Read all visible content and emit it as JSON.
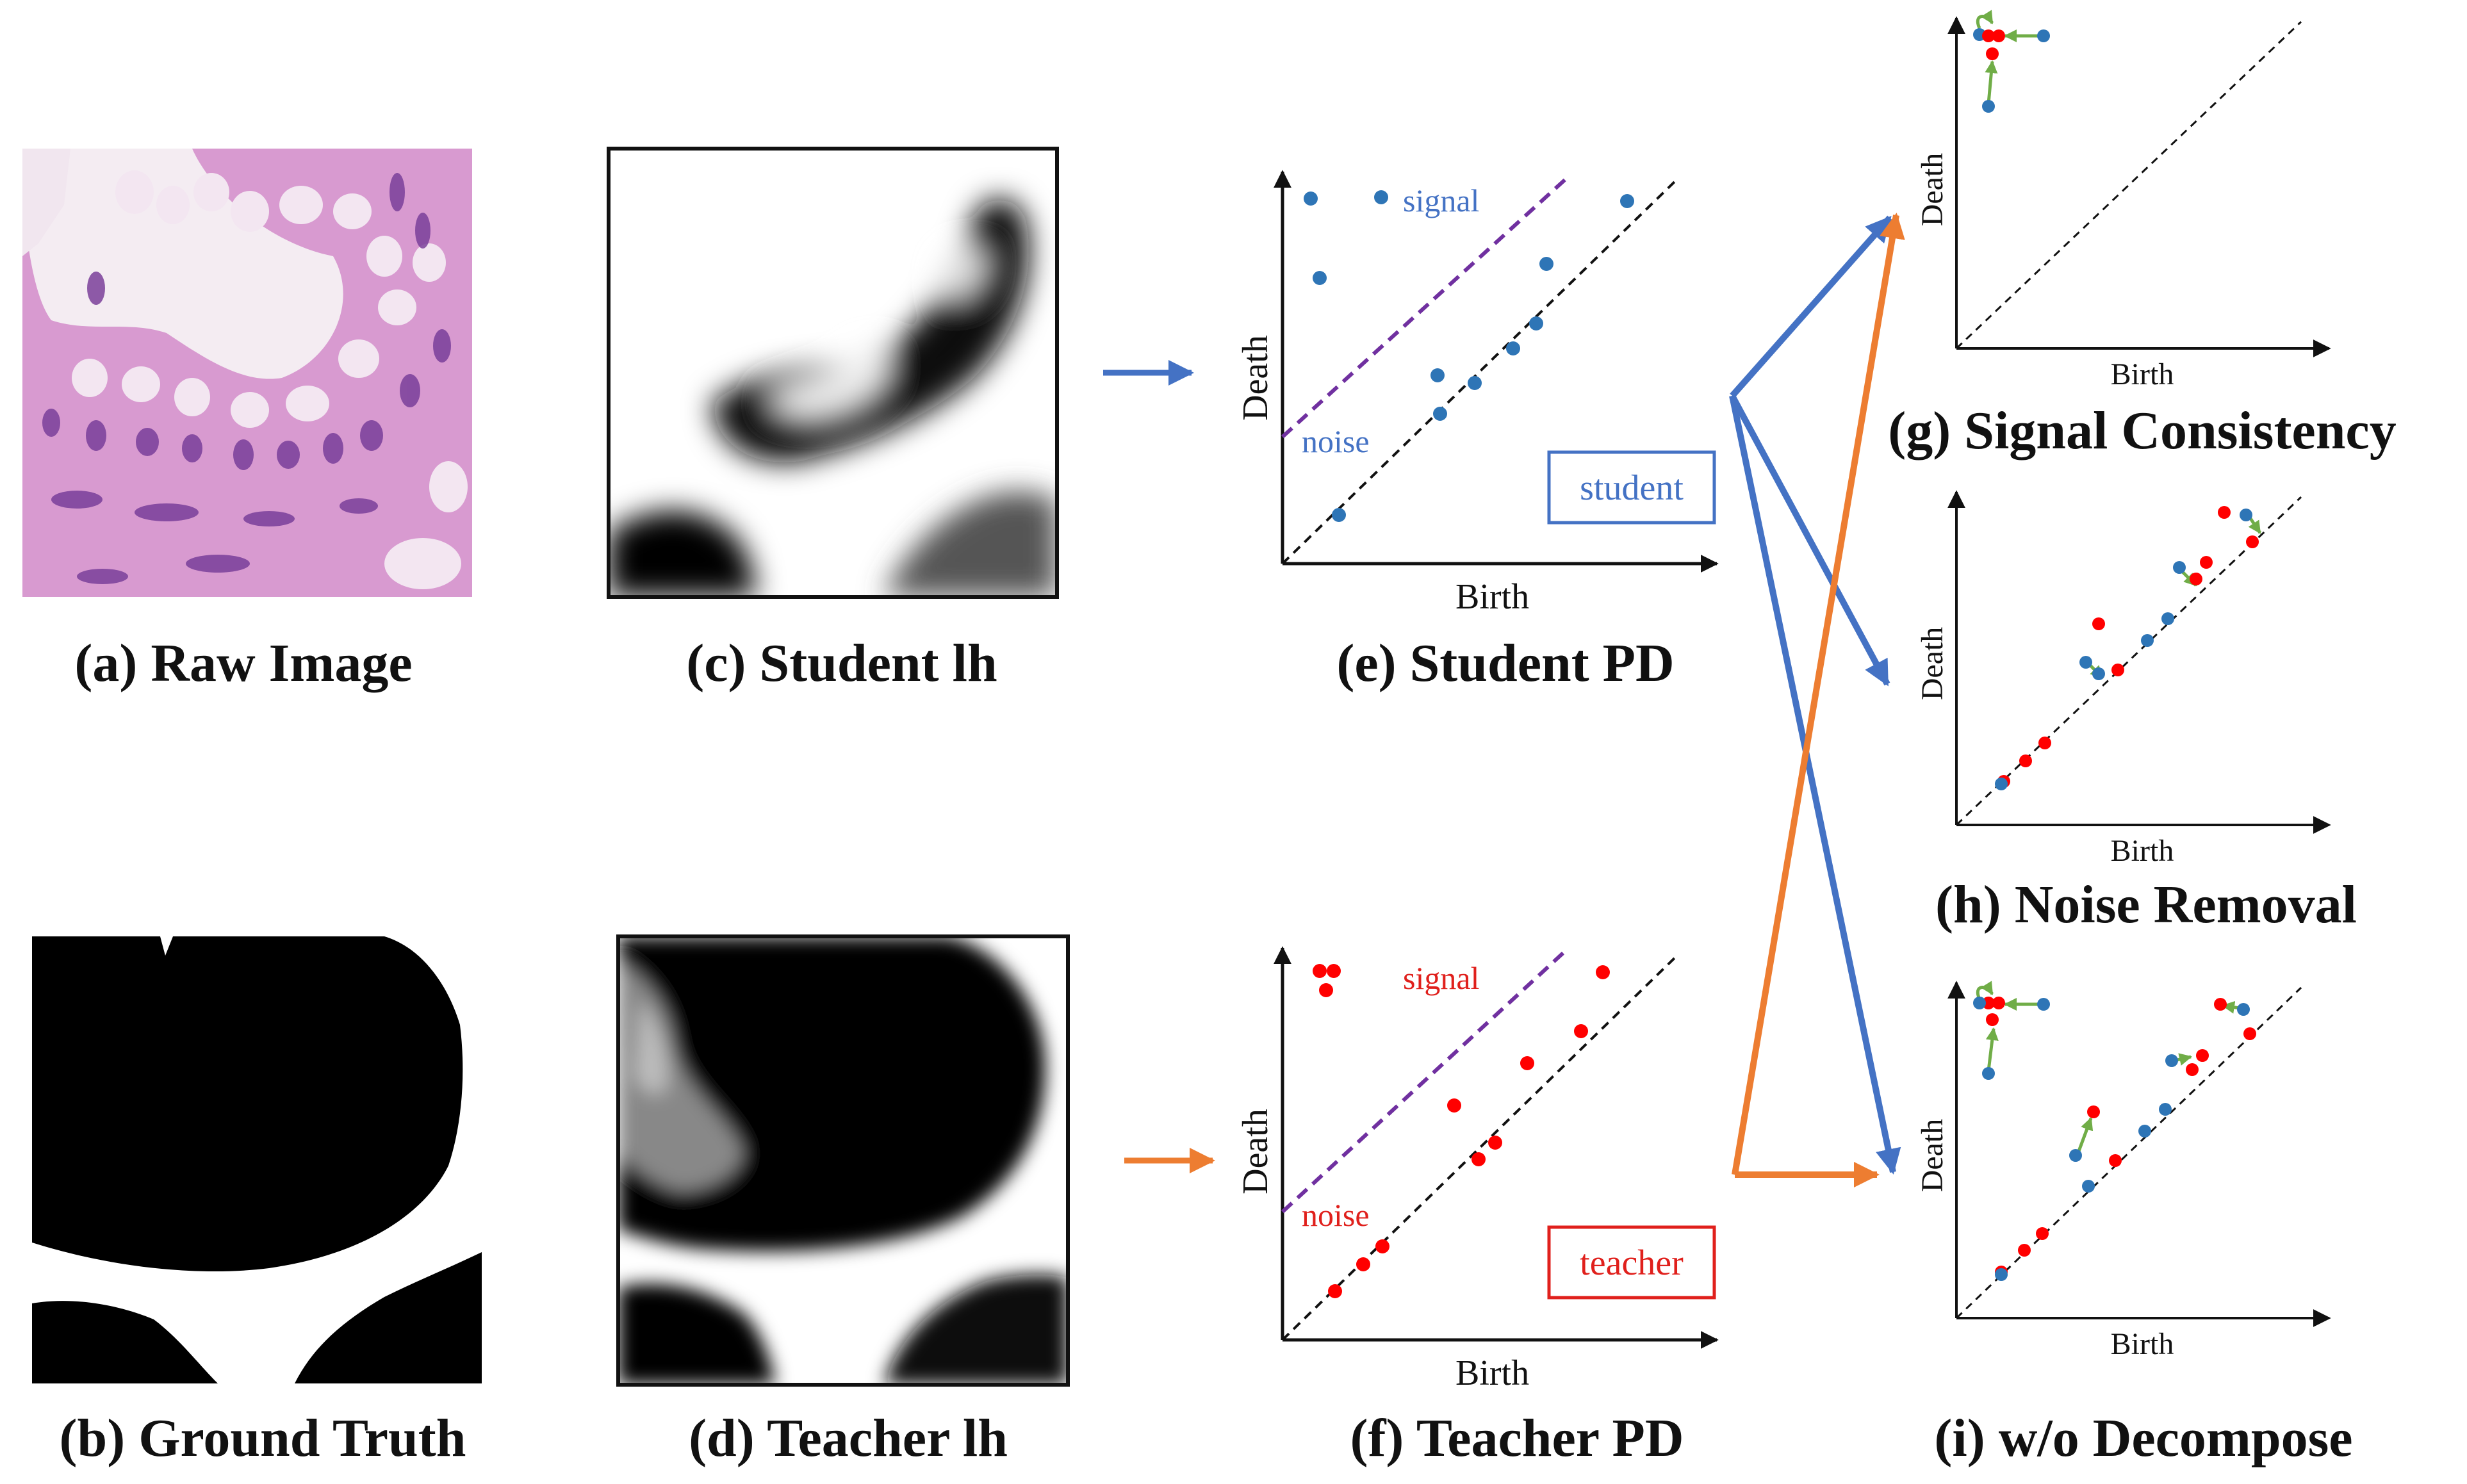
{
  "panels": {
    "a": {
      "caption": "(a) Raw Image"
    },
    "b": {
      "caption": "(b) Ground Truth"
    },
    "c": {
      "caption": "(c) Student lh"
    },
    "d": {
      "caption": "(d) Teacher lh"
    },
    "e": {
      "caption": "(e) Student PD",
      "xlabel": "Birth",
      "ylabel": "Death",
      "signal_label": "signal",
      "noise_label": "noise",
      "box_label": "student"
    },
    "f": {
      "caption": "(f) Teacher PD",
      "xlabel": "Birth",
      "ylabel": "Death",
      "signal_label": "signal",
      "noise_label": "noise",
      "box_label": "teacher"
    },
    "g": {
      "caption": "(g) Signal Consistency",
      "xlabel": "Birth",
      "ylabel": "Death"
    },
    "h": {
      "caption": "(h) Noise Removal",
      "xlabel": "Birth",
      "ylabel": "Death"
    },
    "i": {
      "caption": "(i) w/o Decompose",
      "xlabel": "Birth",
      "ylabel": "Death"
    }
  },
  "colors": {
    "student": "#4472c4",
    "teacher": "#e0201c",
    "teacher_arrow": "#ed7d31",
    "match_arrow": "#70ad47",
    "threshold": "#7030a0"
  }
}
